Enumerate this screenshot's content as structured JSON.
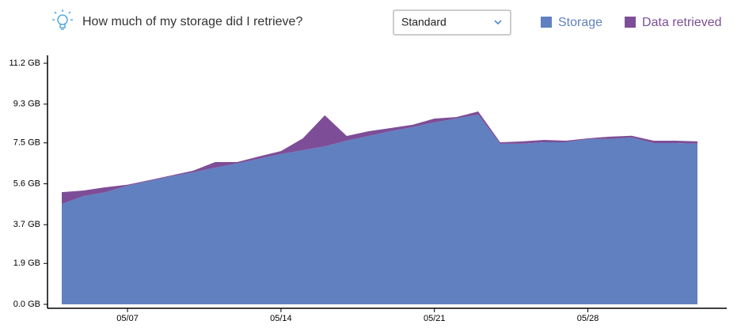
{
  "chart_data": {
    "type": "stacked-area",
    "title": "How much of my storage did I retrieve?",
    "dropdown": "Standard",
    "categories": [
      null,
      null,
      null,
      "05/07",
      null,
      null,
      null,
      null,
      null,
      null,
      "05/14",
      null,
      null,
      null,
      null,
      null,
      null,
      "05/21",
      null,
      null,
      null,
      null,
      null,
      null,
      "05/28",
      null,
      null,
      null,
      null,
      null
    ],
    "series": [
      {
        "name": "Storage",
        "color": "#6080c0",
        "values": [
          4.66,
          5.03,
          5.21,
          5.51,
          5.73,
          5.95,
          6.13,
          6.35,
          6.54,
          6.76,
          6.98,
          7.16,
          7.34,
          7.6,
          7.82,
          8.04,
          8.23,
          8.45,
          8.63,
          8.81,
          7.46,
          7.46,
          7.53,
          7.53,
          7.68,
          7.68,
          7.75,
          7.49,
          7.49,
          7.46
        ]
      },
      {
        "name": "Data retrieved",
        "color": "#7d4e97",
        "values": [
          0.55,
          0.26,
          0.23,
          0.05,
          0.04,
          0.04,
          0.08,
          0.26,
          0.07,
          0.11,
          0.14,
          0.55,
          1.44,
          0.22,
          0.22,
          0.15,
          0.11,
          0.18,
          0.07,
          0.15,
          0.07,
          0.11,
          0.11,
          0.07,
          0.03,
          0.11,
          0.08,
          0.11,
          0.11,
          0.11
        ]
      }
    ],
    "ylim": [
      0,
      11.2
    ],
    "yticks": [
      {
        "value": 0,
        "label": "0.0 GB"
      },
      {
        "value": 1.9,
        "label": "1.9 GB"
      },
      {
        "value": 3.7,
        "label": "3.7 GB"
      },
      {
        "value": 5.6,
        "label": "5.6 GB"
      },
      {
        "value": 7.5,
        "label": "7.5 GB"
      },
      {
        "value": 9.3,
        "label": "9.3 GB"
      },
      {
        "value": 11.2,
        "label": "11.2 GB"
      }
    ],
    "stacked": true
  }
}
